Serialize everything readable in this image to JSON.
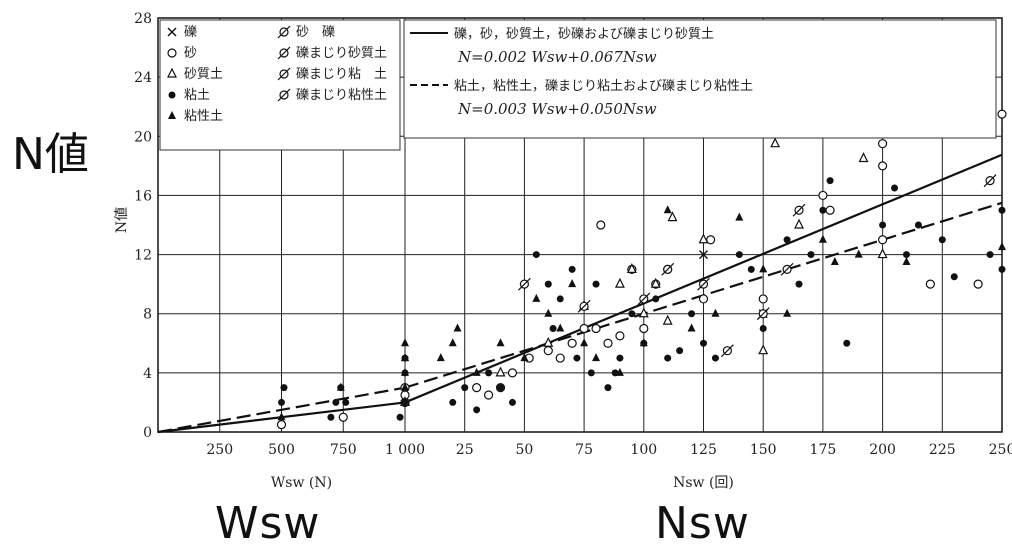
{
  "overlay_labels": {
    "y_big": "N値",
    "x_left_big": "Wsw",
    "x_right_big": "Nsw"
  },
  "chart_data": {
    "type": "scatter",
    "ylabel": "N値",
    "ylim": [
      0,
      28
    ],
    "yticks": [
      "0",
      "4",
      "8",
      "12",
      "16",
      "20",
      "24",
      "28"
    ],
    "x_panels": [
      {
        "name": "wsw",
        "xlabel": "Wsw (N)",
        "xlim": [
          0,
          1000
        ],
        "ticks": [
          250,
          500,
          750,
          1000
        ],
        "tick_labels": [
          "250",
          "500",
          "750",
          "1 000"
        ]
      },
      {
        "name": "nsw",
        "xlabel": "Nsw (回)",
        "xlim": [
          0,
          250
        ],
        "ticks": [
          25,
          50,
          75,
          100,
          125,
          150,
          175,
          200,
          225,
          250
        ],
        "tick_labels": [
          "25",
          "50",
          "75",
          "100",
          "125",
          "150",
          "175",
          "200",
          "225",
          "250"
        ]
      }
    ],
    "legend_markers": [
      {
        "symbol": "×",
        "label": "礫"
      },
      {
        "symbol": "○",
        "label": "砂"
      },
      {
        "symbol": "△",
        "label": "砂質土"
      },
      {
        "symbol": "●",
        "label": "粘土"
      },
      {
        "symbol": "▲",
        "label": "粘性土"
      },
      {
        "symbol": "ø",
        "label": "砂　礫"
      },
      {
        "symbol": "⌀",
        "label": "礫まじり砂質土"
      },
      {
        "symbol": "⌀",
        "label": "礫まじり粘　土"
      },
      {
        "symbol": "⌀",
        "label": "礫まじり粘性土"
      }
    ],
    "legend_lines": [
      {
        "style": "solid",
        "label": "礫，砂，砂質土，砂礫および礫まじり砂質土",
        "equation": "N=0.002 Wsw+0.067Nsw",
        "wsw_coef": 0.002,
        "nsw_coef": 0.067
      },
      {
        "style": "dashed",
        "label": "粘土，粘性土，礫まじり粘土および礫まじり粘性土",
        "equation": "N=0.003 Wsw+0.050Nsw",
        "wsw_coef": 0.003,
        "nsw_coef": 0.05
      }
    ],
    "series": [
      {
        "marker": "circle-open",
        "points": [
          [
            500,
            0.5
          ],
          [
            750,
            1
          ],
          [
            1000,
            2
          ],
          [
            1000,
            3
          ],
          [
            1120,
            2
          ],
          [
            1160,
            2
          ],
          [
            1200,
            2.5
          ],
          [
            30,
            3
          ],
          [
            35,
            2.5
          ],
          [
            40,
            3
          ],
          [
            45,
            4
          ],
          [
            52,
            5
          ],
          [
            60,
            5.5
          ],
          [
            65,
            5
          ],
          [
            70,
            6
          ],
          [
            75,
            7
          ],
          [
            80,
            7
          ],
          [
            82,
            14
          ],
          [
            85,
            6
          ],
          [
            90,
            6.5
          ],
          [
            95,
            11
          ],
          [
            100,
            7
          ],
          [
            105,
            10
          ],
          [
            110,
            11
          ],
          [
            125,
            9
          ],
          [
            128,
            13
          ],
          [
            150,
            9
          ],
          [
            175,
            16
          ],
          [
            178,
            15
          ],
          [
            200,
            13
          ],
          [
            200,
            18
          ],
          [
            200,
            19.5
          ],
          [
            220,
            10
          ],
          [
            240,
            10
          ],
          [
            250,
            21.5
          ]
        ]
      },
      {
        "marker": "triangle-open",
        "points": [
          [
            480,
            0.3
          ],
          [
            1000,
            2
          ],
          [
            40,
            4
          ],
          [
            60,
            6
          ],
          [
            75,
            8.5
          ],
          [
            90,
            10
          ],
          [
            95,
            11
          ],
          [
            100,
            8
          ],
          [
            105,
            10
          ],
          [
            110,
            7.5
          ],
          [
            112,
            14.5
          ],
          [
            125,
            13
          ],
          [
            150,
            5.5
          ],
          [
            155,
            19.5
          ],
          [
            165,
            14
          ],
          [
            192,
            18.5
          ],
          [
            200,
            12
          ]
        ]
      },
      {
        "marker": "dot-filled",
        "points": [
          [
            460,
            1
          ],
          [
            470,
            2
          ],
          [
            480,
            3
          ],
          [
            490,
            1.5
          ],
          [
            500,
            2
          ],
          [
            510,
            3
          ],
          [
            700,
            1
          ],
          [
            720,
            2
          ],
          [
            740,
            3
          ],
          [
            760,
            2
          ],
          [
            980,
            1
          ],
          [
            1000,
            2
          ],
          [
            1000,
            4
          ],
          [
            1000,
            5
          ],
          [
            20,
            2
          ],
          [
            25,
            3
          ],
          [
            30,
            1.5
          ],
          [
            35,
            4
          ],
          [
            40,
            3
          ],
          [
            45,
            2
          ],
          [
            55,
            12
          ],
          [
            60,
            10
          ],
          [
            62,
            7
          ],
          [
            65,
            9
          ],
          [
            70,
            11
          ],
          [
            72,
            5
          ],
          [
            78,
            4
          ],
          [
            80,
            10
          ],
          [
            85,
            3
          ],
          [
            88,
            4
          ],
          [
            90,
            5
          ],
          [
            95,
            8
          ],
          [
            100,
            6
          ],
          [
            100,
            9
          ],
          [
            105,
            9
          ],
          [
            110,
            5
          ],
          [
            115,
            5.5
          ],
          [
            120,
            8
          ],
          [
            125,
            6
          ],
          [
            130,
            5
          ],
          [
            140,
            12
          ],
          [
            145,
            11
          ],
          [
            150,
            7
          ],
          [
            160,
            13
          ],
          [
            165,
            10
          ],
          [
            170,
            12
          ],
          [
            175,
            15
          ],
          [
            178,
            17
          ],
          [
            185,
            6
          ],
          [
            200,
            14
          ],
          [
            205,
            16.5
          ],
          [
            210,
            12
          ],
          [
            215,
            14
          ],
          [
            225,
            13
          ],
          [
            230,
            10.5
          ],
          [
            245,
            12
          ],
          [
            250,
            11
          ],
          [
            250,
            15
          ]
        ]
      },
      {
        "marker": "triangle-filled",
        "points": [
          [
            480,
            0.5
          ],
          [
            500,
            1
          ],
          [
            740,
            3
          ],
          [
            1000,
            3
          ],
          [
            1000,
            6
          ],
          [
            1050,
            5
          ],
          [
            1100,
            4
          ],
          [
            1150,
            5
          ],
          [
            15,
            5
          ],
          [
            20,
            6
          ],
          [
            22,
            7
          ],
          [
            30,
            4
          ],
          [
            40,
            6
          ],
          [
            50,
            5
          ],
          [
            55,
            9
          ],
          [
            60,
            8
          ],
          [
            65,
            7
          ],
          [
            70,
            10
          ],
          [
            75,
            6
          ],
          [
            80,
            5
          ],
          [
            90,
            4
          ],
          [
            100,
            6
          ],
          [
            110,
            15
          ],
          [
            120,
            7
          ],
          [
            130,
            8
          ],
          [
            140,
            14.5
          ],
          [
            150,
            11
          ],
          [
            160,
            8
          ],
          [
            175,
            13
          ],
          [
            180,
            11.5
          ],
          [
            190,
            12
          ],
          [
            210,
            11.5
          ],
          [
            250,
            12.5
          ]
        ]
      },
      {
        "marker": "cross",
        "points": [
          [
            125,
            12
          ],
          [
            150,
            8
          ]
        ]
      },
      {
        "marker": "slashed-circle",
        "points": [
          [
            50,
            10
          ],
          [
            75,
            8.5
          ],
          [
            100,
            9
          ],
          [
            110,
            11
          ],
          [
            125,
            10
          ],
          [
            135,
            5.5
          ],
          [
            150,
            8
          ],
          [
            160,
            11
          ],
          [
            165,
            15
          ],
          [
            245,
            17
          ]
        ]
      }
    ]
  }
}
